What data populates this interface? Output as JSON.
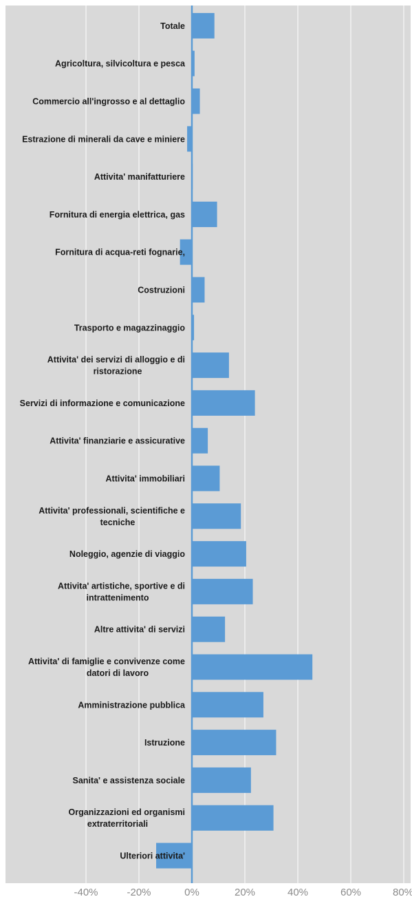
{
  "chart_data": {
    "type": "bar",
    "orientation": "horizontal",
    "categories": [
      [
        "Totale"
      ],
      [
        "Agricoltura, silvicoltura e pesca"
      ],
      [
        "Commercio all'ingrosso e al dettaglio"
      ],
      [
        "Estrazione di minerali da cave e miniere"
      ],
      [
        "Attivita' manifatturiere"
      ],
      [
        "Fornitura di energia elettrica, gas"
      ],
      [
        "Fornitura di acqua-reti fognarie,"
      ],
      [
        "Costruzioni"
      ],
      [
        "Trasporto e magazzinaggio"
      ],
      [
        "Attivita' dei servizi di alloggio e di",
        "ristorazione"
      ],
      [
        "Servizi di informazione e comunicazione"
      ],
      [
        "Attivita' finanziarie e assicurative"
      ],
      [
        "Attivita' immobiliari"
      ],
      [
        "Attivita' professionali, scientifiche e",
        "tecniche"
      ],
      [
        "Noleggio, agenzie di viaggio"
      ],
      [
        "Attivita' artistiche, sportive e di",
        "intrattenimento"
      ],
      [
        "Altre attivita' di servizi"
      ],
      [
        "Attivita' di famiglie e convivenze come",
        "datori di lavoro"
      ],
      [
        "Amministrazione pubblica"
      ],
      [
        "Istruzione"
      ],
      [
        "Sanita' e assistenza sociale"
      ],
      [
        "Organizzazioni ed organismi",
        "extraterritoriali"
      ],
      [
        "Ulteriori attivita'"
      ]
    ],
    "values": [
      8.5,
      1.0,
      3.0,
      -1.8,
      0.3,
      9.5,
      -4.5,
      4.8,
      0.8,
      14.0,
      23.8,
      6.0,
      10.5,
      18.5,
      20.5,
      23.0,
      12.5,
      45.5,
      27.0,
      31.8,
      22.3,
      30.8,
      -13.5
    ],
    "xlim": [
      -40,
      80
    ],
    "x_ticks": [
      "-40%",
      "-20%",
      "0%",
      "20%",
      "40%",
      "60%",
      "80%"
    ],
    "x_tick_values": [
      -40,
      -20,
      0,
      20,
      40,
      60,
      80
    ],
    "grid": true,
    "legend": "none",
    "colors": {
      "background": "#d9d9d9",
      "bar": "#5b9bd5",
      "gridline": "#ffffff",
      "tick_text": "#8a8a8a",
      "label_text": "#1a1a1a"
    }
  }
}
